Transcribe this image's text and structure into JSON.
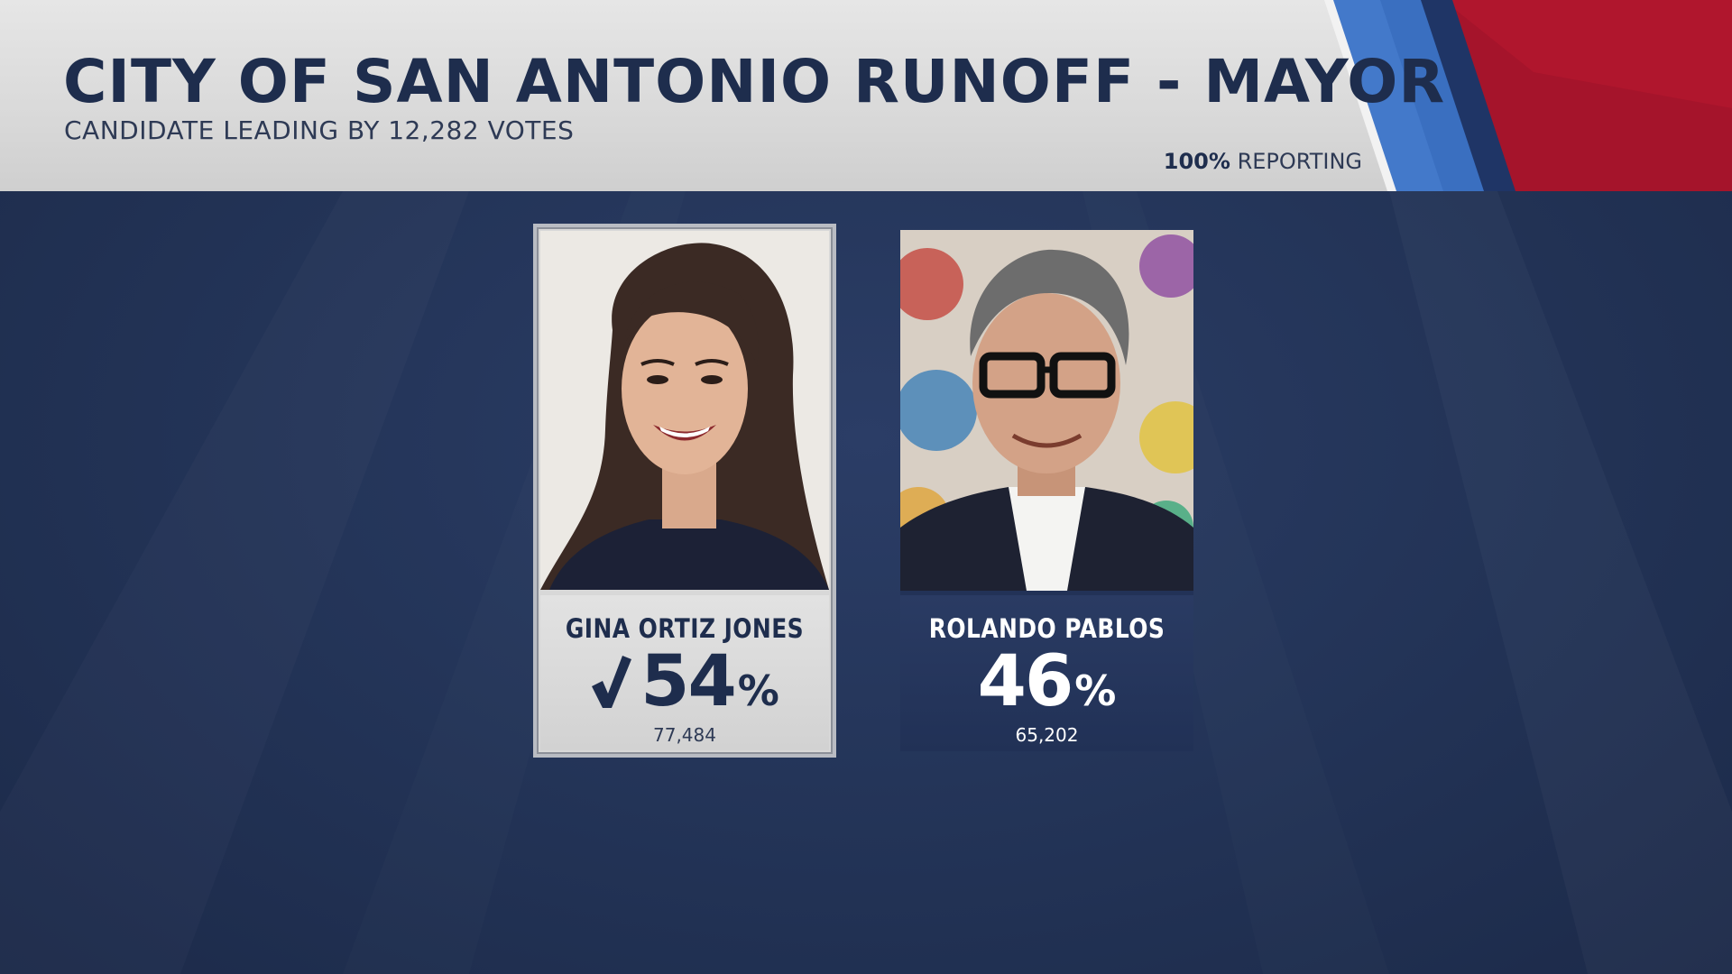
{
  "header": {
    "title": "CITY OF SAN ANTONIO RUNOFF - MAYOR",
    "subtitle": "CANDIDATE LEADING BY 12,282 VOTES",
    "reporting_pct": "100%",
    "reporting_label": "REPORTING"
  },
  "candidates": [
    {
      "name": "GINA ORTIZ JONES",
      "percent": "54",
      "percent_sign": "%",
      "votes": "77,484",
      "winner": true,
      "check_icon": "checkmark-icon"
    },
    {
      "name": "ROLANDO PABLOS",
      "percent": "46",
      "percent_sign": "%",
      "votes": "65,202",
      "winner": false
    }
  ],
  "colors": {
    "navy_text": "#1e2d4d",
    "background": "#243559",
    "flag_blue": "#3a6fc0",
    "flag_red": "#a5142b",
    "header_gray": "#dcdcdc"
  }
}
